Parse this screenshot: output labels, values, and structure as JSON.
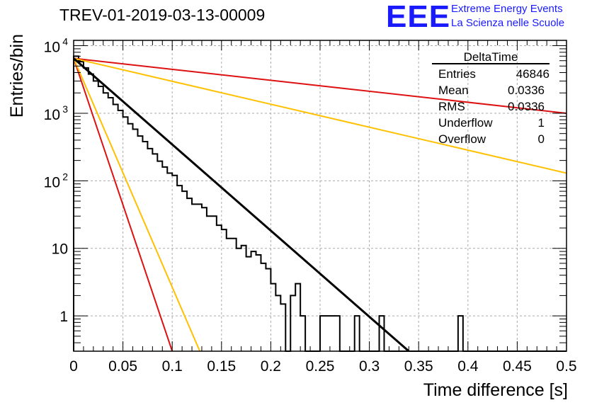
{
  "header": {
    "title": "TREV-01-2019-03-13-00009",
    "logo_mark": "EEE",
    "logo_line1": "Extreme Energy Events",
    "logo_line2": "La Scienza nelle Scuole"
  },
  "stats_box": {
    "title": "DeltaTime",
    "rows": [
      {
        "label": "Entries",
        "value": "46846"
      },
      {
        "label": "Mean",
        "value": "0.0336"
      },
      {
        "label": "RMS",
        "value": "0.0336"
      },
      {
        "label": "Underflow",
        "value": "1"
      },
      {
        "label": "Overflow",
        "value": "0"
      }
    ]
  },
  "colors": {
    "histogram": "#000000",
    "fit": "#000000",
    "red_lines": "#dd1111",
    "orange_lines": "#ffc000",
    "grid": "#aaaaaa"
  },
  "chart_data": {
    "type": "line",
    "xlabel": "Time difference [s]",
    "ylabel": "Entries/bin",
    "xlim": [
      0,
      0.5
    ],
    "ylim": [
      0.3,
      12000
    ],
    "yscale": "log",
    "grid": true,
    "x_ticks": [
      0,
      0.05,
      0.1,
      0.15,
      0.2,
      0.25,
      0.3,
      0.35,
      0.4,
      0.45,
      0.5
    ],
    "x_tick_labels": [
      "0",
      "0.05",
      "0.1",
      "0.15",
      "0.2",
      "0.25",
      "0.3",
      "0.35",
      "0.4",
      "0.45",
      "0.5"
    ],
    "y_ticks": [
      1,
      10,
      100,
      1000,
      10000
    ],
    "histogram": {
      "bin_width": 0.005,
      "counts": [
        7000,
        5800,
        4700,
        3800,
        3000,
        2500,
        2000,
        1700,
        1350,
        1100,
        880,
        700,
        580,
        460,
        380,
        300,
        250,
        195,
        160,
        130,
        120,
        85,
        70,
        55,
        45,
        45,
        40,
        30,
        30,
        22,
        19,
        14,
        14,
        10,
        11,
        7.5,
        9,
        8,
        6,
        5,
        3,
        2,
        1.5,
        0,
        2,
        3,
        1,
        0,
        0,
        0,
        1,
        1,
        1,
        1,
        0,
        0,
        0,
        1,
        0,
        0,
        0,
        0,
        1,
        0,
        0,
        0,
        0,
        0,
        0,
        0,
        0,
        0,
        0,
        0,
        0,
        0,
        0,
        0,
        1,
        0,
        0,
        0,
        0,
        0,
        0,
        0,
        0,
        0,
        0,
        0,
        0,
        0,
        0,
        0,
        0,
        0,
        0,
        0,
        0,
        0
      ]
    },
    "series": [
      {
        "style": "fit",
        "color": "#000000",
        "x": [
          0,
          0.34
        ],
        "y": [
          6500,
          0.3
        ]
      },
      {
        "style": "red",
        "color": "#dd1111",
        "x": [
          0,
          0.5
        ],
        "y": [
          6500,
          1000
        ]
      },
      {
        "style": "red",
        "color": "#dd1111",
        "x": [
          0,
          0.1
        ],
        "y": [
          6500,
          0.3
        ]
      },
      {
        "style": "orange",
        "color": "#ffc000",
        "x": [
          0,
          0.5
        ],
        "y": [
          6500,
          130
        ]
      },
      {
        "style": "orange",
        "color": "#ffc000",
        "x": [
          0,
          0.128
        ],
        "y": [
          6500,
          0.3
        ]
      }
    ]
  }
}
